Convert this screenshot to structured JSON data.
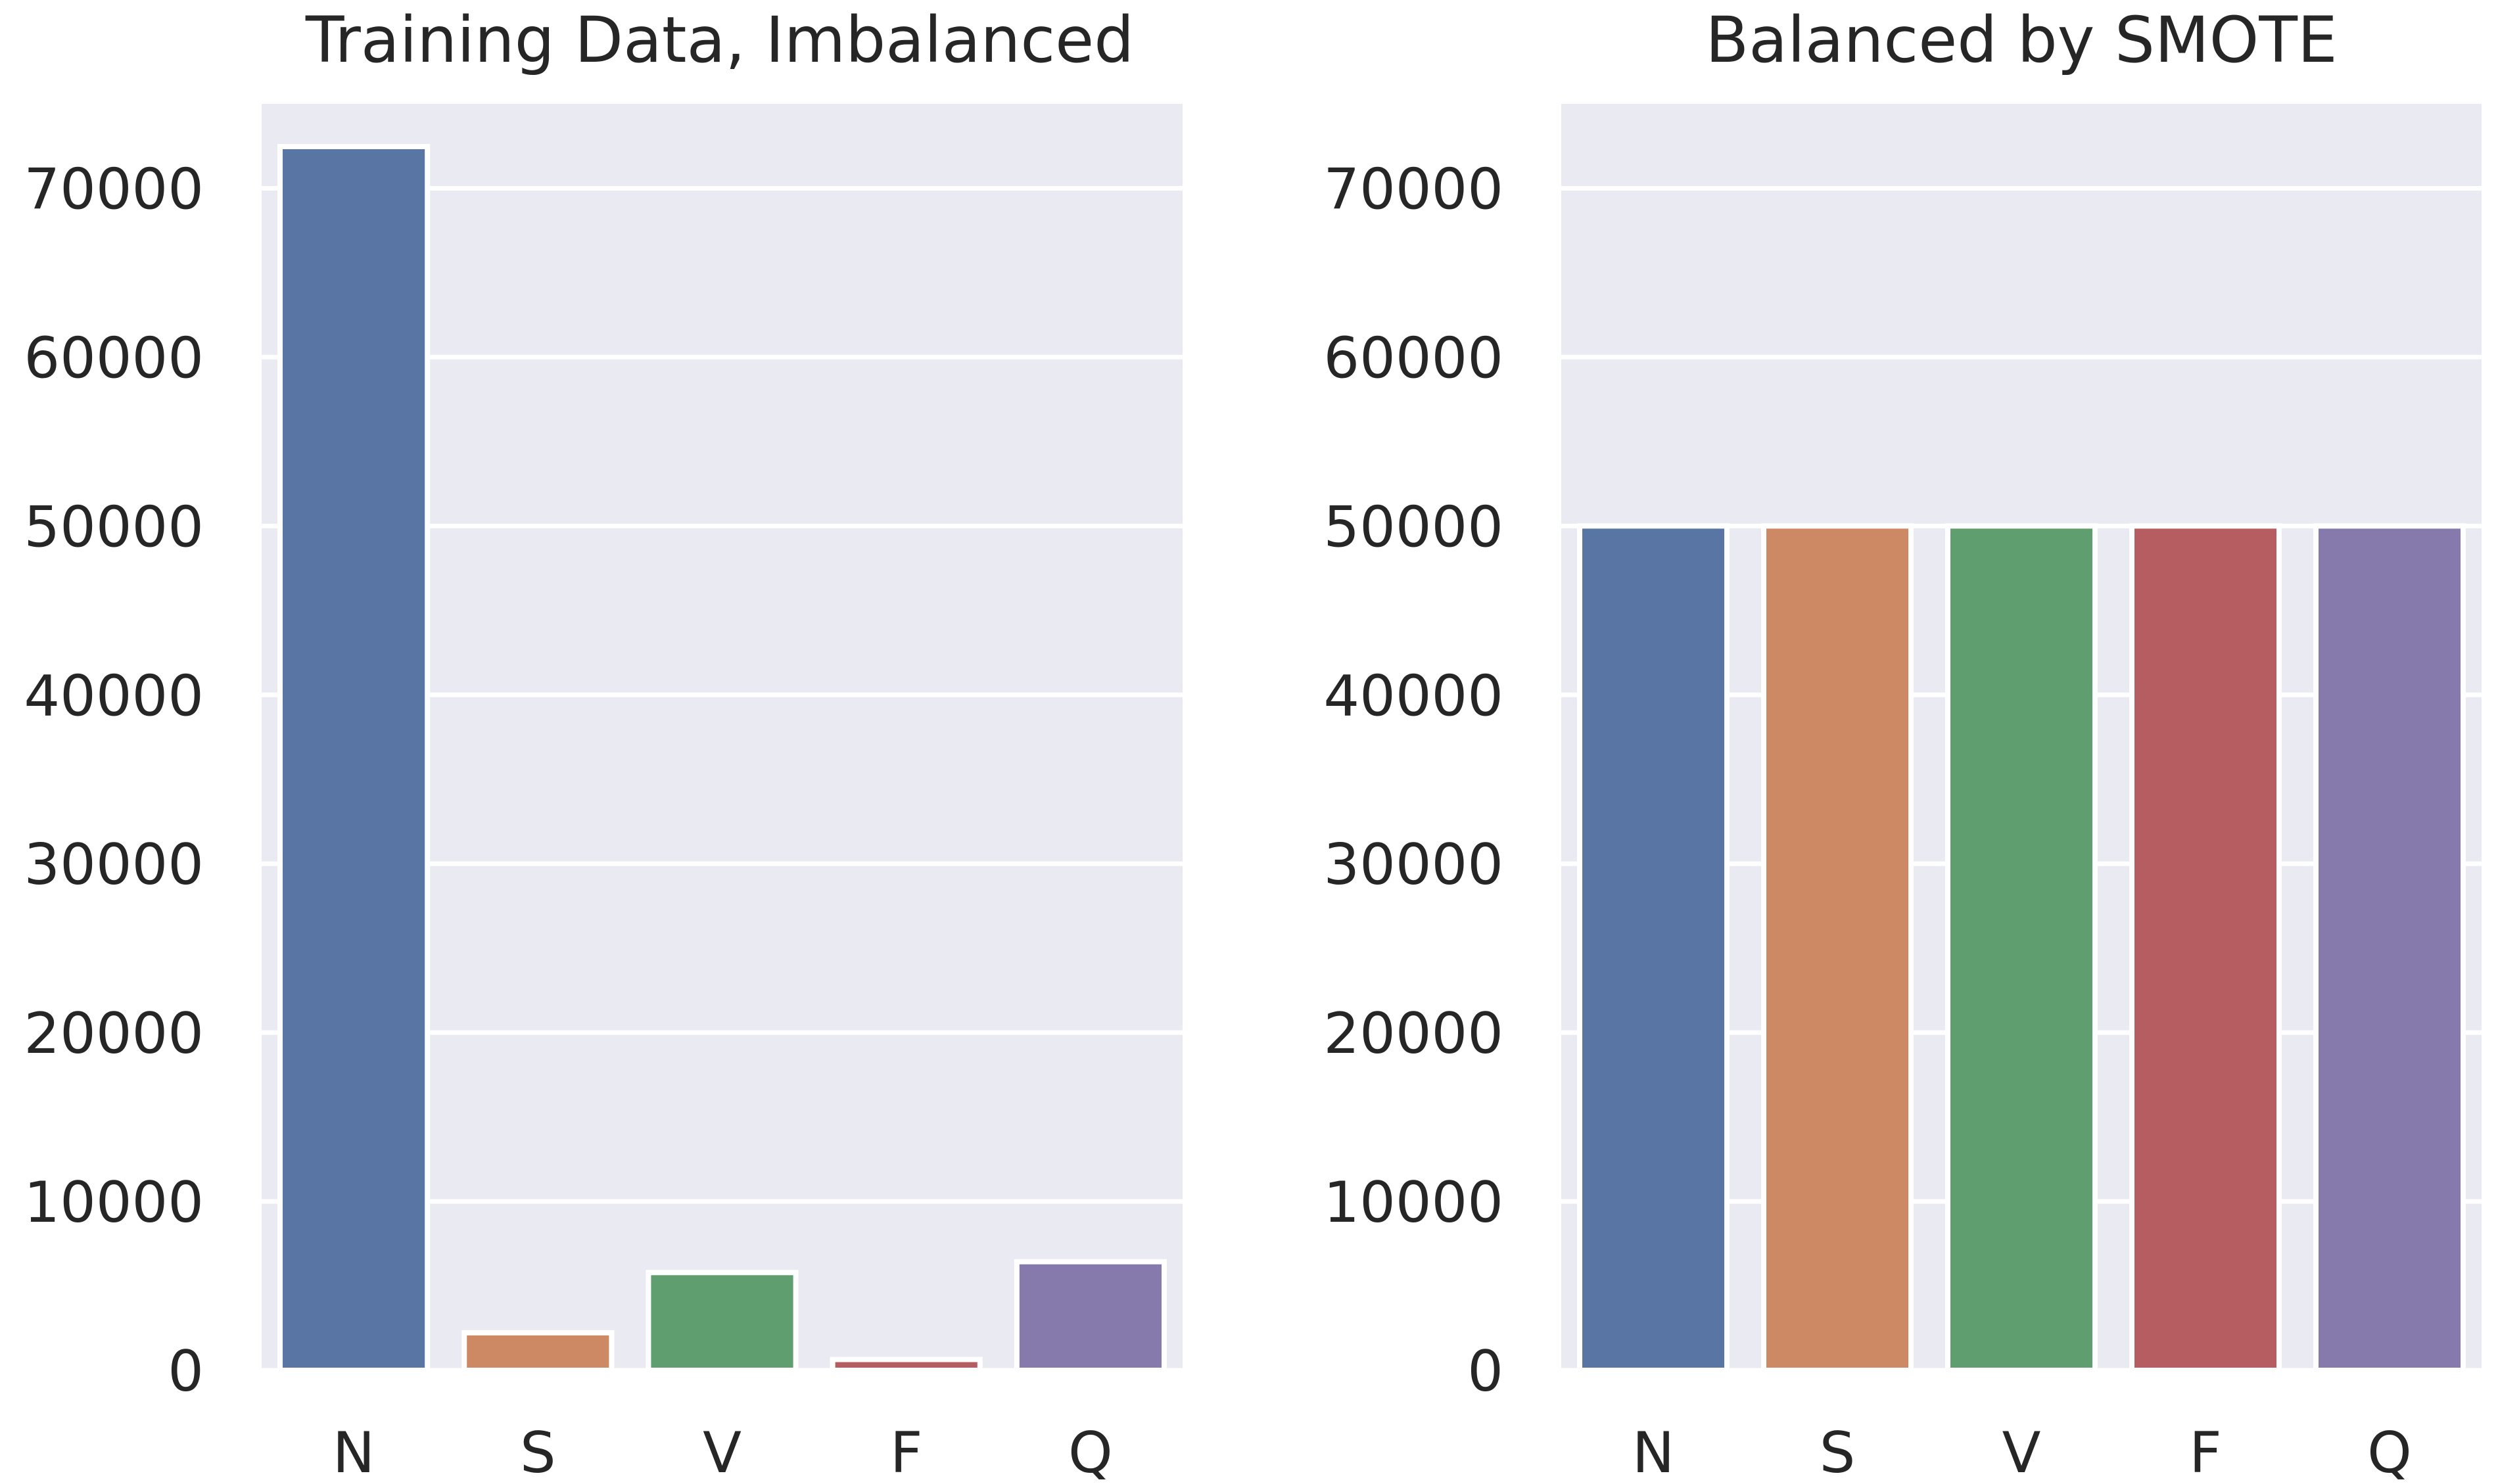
{
  "chart_data": [
    {
      "type": "bar",
      "title": "Training Data, Imbalanced",
      "categories": [
        "N",
        "S",
        "V",
        "F",
        "Q"
      ],
      "values": [
        72471,
        2223,
        5788,
        641,
        6431
      ],
      "colors": [
        "#5975a4",
        "#cc8963",
        "#5f9e6e",
        "#b55d60",
        "#857aab"
      ],
      "ylim": [
        0,
        75000
      ],
      "yticks": [
        0,
        10000,
        20000,
        30000,
        40000,
        50000,
        60000,
        70000
      ],
      "ytick_labels": [
        "0",
        "10000",
        "20000",
        "30000",
        "40000",
        "50000",
        "60000",
        "70000"
      ],
      "background": "#eaeaf2",
      "grid": true
    },
    {
      "type": "bar",
      "title": "Balanced by SMOTE",
      "categories": [
        "N",
        "S",
        "V",
        "F",
        "Q"
      ],
      "values": [
        50000,
        50000,
        50000,
        50000,
        50000
      ],
      "colors": [
        "#5975a4",
        "#cc8963",
        "#5f9e6e",
        "#b55d60",
        "#857aab"
      ],
      "ylim": [
        0,
        75000
      ],
      "yticks": [
        0,
        10000,
        20000,
        30000,
        40000,
        50000,
        60000,
        70000
      ],
      "ytick_labels": [
        "0",
        "10000",
        "20000",
        "30000",
        "40000",
        "50000",
        "60000",
        "70000"
      ],
      "background": "#eaeaf2",
      "grid": true
    }
  ]
}
